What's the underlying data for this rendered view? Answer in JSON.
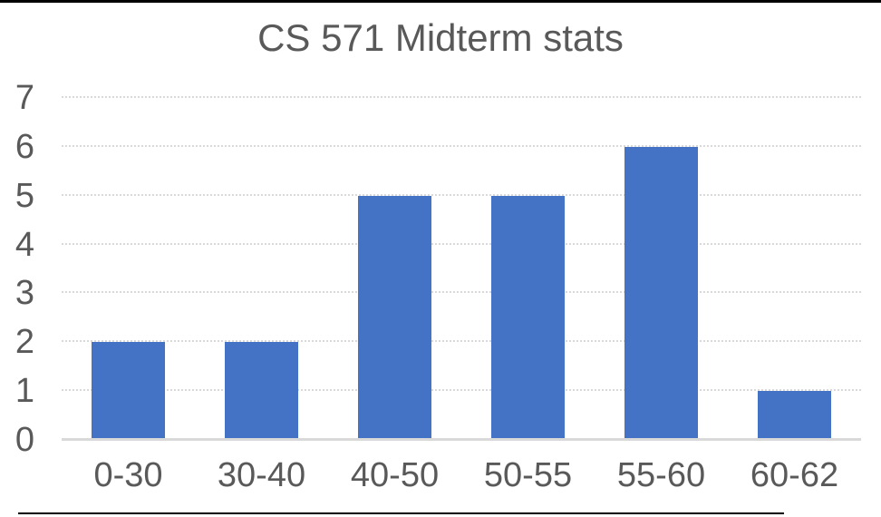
{
  "chart_data": {
    "type": "bar",
    "title": "CS 571 Midterm stats",
    "categories": [
      "0-30",
      "30-40",
      "40-50",
      "50-55",
      "55-60",
      "60-62"
    ],
    "values": [
      2,
      2,
      5,
      5,
      6,
      1
    ],
    "xlabel": "",
    "ylabel": "",
    "ylim": [
      0,
      7
    ],
    "yticks": [
      0,
      1,
      2,
      3,
      4,
      5,
      6,
      7
    ],
    "grid": "horizontal-dotted",
    "legend": "none",
    "bar_color": "#4472C4"
  },
  "colors": {
    "bar": "#4472C4",
    "text": "#595959",
    "gridline": "#D9D9D9",
    "axis_line": "#D9D9D9",
    "frame_border": "#000000",
    "background": "#FFFFFF"
  }
}
